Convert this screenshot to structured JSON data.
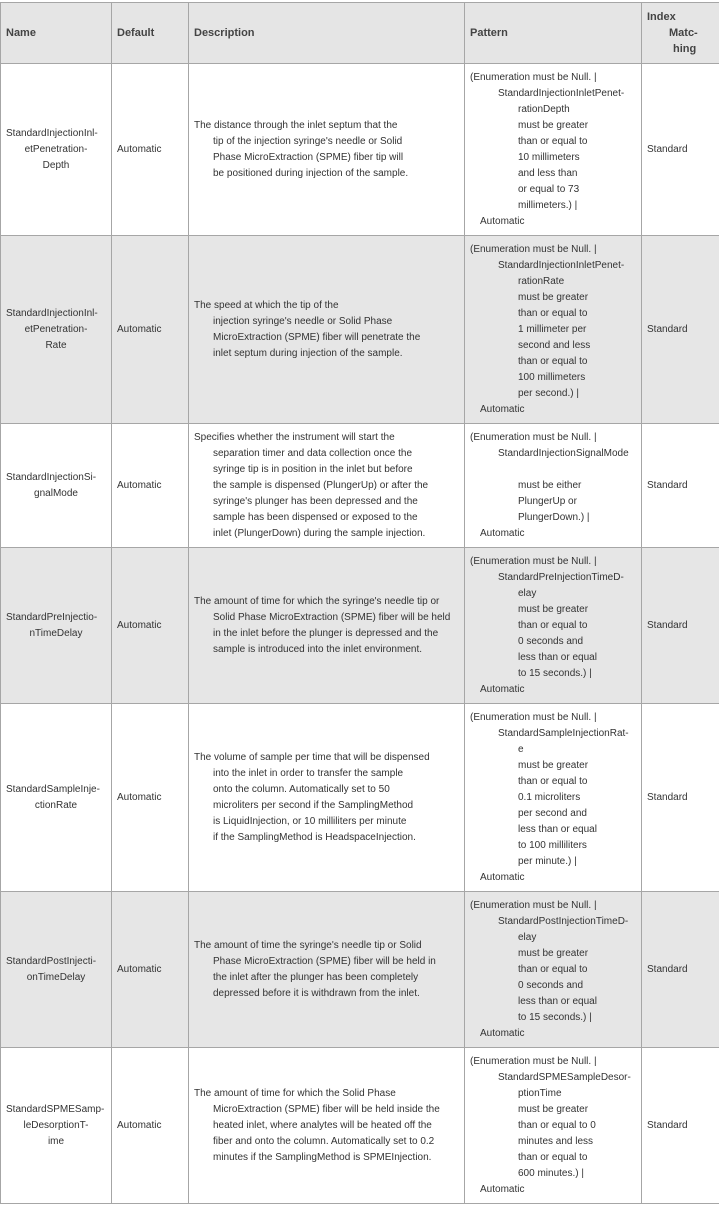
{
  "headers": {
    "name": "Name",
    "default": "Default",
    "description": "Description",
    "pattern": "Pattern",
    "index_matching": [
      "Index",
      "Matc-",
      "hing"
    ]
  },
  "rows": [
    {
      "name": [
        "StandardInjectionInl-",
        "etPenetration-",
        "Depth"
      ],
      "default": "Automatic",
      "description": [
        "The distance through the inlet septum that the",
        "tip of the injection syringe's needle or Solid",
        "Phase MicroExtraction (SPME) fiber tip will",
        "be positioned during injection of the sample."
      ],
      "pattern_head": "(Enumeration must be Null. |",
      "pattern_name": [
        "StandardInjectionInletPenet-",
        "rationDepth"
      ],
      "pattern_cond": [
        "must be greater",
        "than or equal to",
        "10 millimeters",
        "and less than",
        "or equal to 73",
        "millimeters.) |"
      ],
      "pattern_tail": "Automatic",
      "index": "Standard",
      "height": 172
    },
    {
      "name": [
        "StandardInjectionInl-",
        "etPenetration-",
        "Rate"
      ],
      "default": "Automatic",
      "description": [
        "The speed at which the tip of the",
        "injection syringe's needle or Solid Phase",
        "MicroExtraction (SPME) fiber will penetrate the",
        "inlet septum during injection of the sample."
      ],
      "pattern_head": "(Enumeration must be Null. |",
      "pattern_name": [
        "StandardInjectionInletPenet-",
        "rationRate"
      ],
      "pattern_cond": [
        "must be greater",
        "than or equal to",
        "1 millimeter per",
        "second and less",
        "than or equal to",
        "100 millimeters",
        "per second.) |"
      ],
      "pattern_tail": "Automatic",
      "index": "Standard",
      "height": 188
    },
    {
      "name": [
        "StandardInjectionSi-",
        "gnalMode"
      ],
      "default": "Automatic",
      "description": [
        "Specifies whether the instrument will start the",
        "separation timer and data collection once the",
        "syringe tip is in position in the inlet but before",
        "the sample is dispensed (PlungerUp) or after the",
        "syringe's plunger has been depressed and the",
        "sample has been dispensed or exposed to the",
        "inlet (PlungerDown) during the sample injection."
      ],
      "pattern_head": "(Enumeration must be Null. |",
      "pattern_name": [
        "StandardInjectionSignalMode",
        ""
      ],
      "pattern_cond": [
        "must be either",
        "PlungerUp or",
        "PlungerDown.) |"
      ],
      "pattern_tail": "Automatic",
      "index": "Standard",
      "height": 124
    },
    {
      "name": [
        "StandardPreInjectio-",
        "nTimeDelay"
      ],
      "default": "Automatic",
      "description": [
        "The amount of time for which the syringe's needle tip or",
        "Solid Phase MicroExtraction (SPME) fiber will be held",
        "in the inlet before the plunger is depressed and the",
        "sample is introduced into the inlet environment."
      ],
      "pattern_head": "(Enumeration must be Null. |",
      "pattern_name": [
        "StandardPreInjectionTimeD-",
        "elay"
      ],
      "pattern_cond": [
        "must be greater",
        "than or equal to",
        "0 seconds and",
        "less than or equal",
        "to 15 seconds.) |"
      ],
      "pattern_tail": "Automatic",
      "index": "Standard",
      "height": 156
    },
    {
      "name": [
        "StandardSampleInje-",
        "ctionRate"
      ],
      "default": "Automatic",
      "description": [
        "The volume of sample per time that will be dispensed",
        "into the inlet in order to transfer the sample",
        "onto the column.  Automatically set to 50",
        "microliters per second if the SamplingMethod",
        "is LiquidInjection, or 10 milliliters per minute",
        "if the SamplingMethod is HeadspaceInjection."
      ],
      "pattern_head": "(Enumeration must be Null. |",
      "pattern_name": [
        "StandardSampleInjectionRat-",
        "e"
      ],
      "pattern_cond": [
        "must be greater",
        "than or equal to",
        "0.1 microliters",
        "per second and",
        "less than or equal",
        "to 100 milliliters",
        "per minute.) |"
      ],
      "pattern_tail": "Automatic",
      "index": "Standard",
      "height": 188
    },
    {
      "name": [
        "StandardPostInjecti-",
        "onTimeDelay"
      ],
      "default": "Automatic",
      "description": [
        "The amount of time the syringe's needle tip or Solid",
        "Phase MicroExtraction (SPME) fiber will be held in",
        "the inlet after the plunger has been completely",
        "depressed before it is withdrawn from the inlet."
      ],
      "pattern_head": "(Enumeration must be Null. |",
      "pattern_name": [
        "StandardPostInjectionTimeD-",
        "elay"
      ],
      "pattern_cond": [
        "must be greater",
        "than or equal to",
        "0 seconds and",
        "less than or equal",
        "to 15 seconds.) |"
      ],
      "pattern_tail": "Automatic",
      "index": "Standard",
      "height": 156
    },
    {
      "name": [
        "StandardSPMESamp-",
        "leDesorptionT-",
        "ime"
      ],
      "default": "Automatic",
      "description": [
        "The amount of time for which the Solid Phase",
        "MicroExtraction (SPME) fiber will be held inside the",
        "heated inlet, where analytes will be heated off the",
        "fiber and onto the column.  Automatically set to 0.2",
        "minutes if the SamplingMethod is SPMEInjection."
      ],
      "pattern_head": "(Enumeration must be Null. |",
      "pattern_name": [
        "StandardSPMESampleDesor-",
        "ptionTime"
      ],
      "pattern_cond": [
        "must be greater",
        "than or equal to 0",
        "minutes and less",
        "than or equal to",
        "600 minutes.) |"
      ],
      "pattern_tail": "Automatic",
      "index": "Standard",
      "height": 156
    }
  ]
}
